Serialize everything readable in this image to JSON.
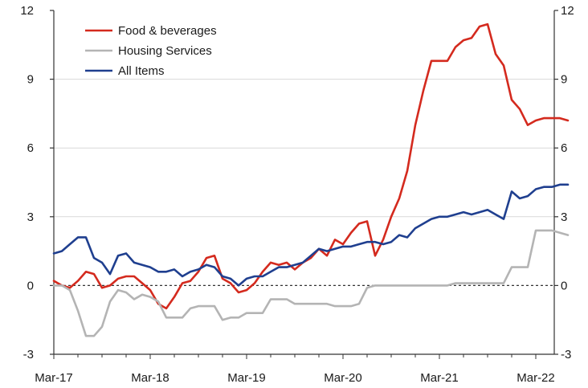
{
  "chart_data": {
    "type": "line",
    "title": "",
    "xlabel": "",
    "ylabel": "",
    "x_ticks": [
      "Mar-17",
      "Mar-18",
      "Mar-19",
      "Mar-20",
      "Mar-21",
      "Mar-22"
    ],
    "x_range": [
      "2017-03",
      "2022-03"
    ],
    "ylim": [
      -3,
      12
    ],
    "y_ticks": [
      -3,
      0,
      3,
      6,
      9,
      12
    ],
    "right_axis_mirrors_left": true,
    "grid": "horizontal",
    "legend_position": "top-left",
    "series": [
      {
        "name": "Food & beverages",
        "color": "#d42a1e",
        "points": [
          [
            "2017-03",
            0.2
          ],
          [
            "2017-04",
            0.0
          ],
          [
            "2017-05",
            -0.1
          ],
          [
            "2017-06",
            0.2
          ],
          [
            "2017-07",
            0.6
          ],
          [
            "2017-08",
            0.5
          ],
          [
            "2017-09",
            -0.1
          ],
          [
            "2017-10",
            0.0
          ],
          [
            "2017-11",
            0.3
          ],
          [
            "2017-12",
            0.4
          ],
          [
            "2018-01",
            0.4
          ],
          [
            "2018-02",
            0.1
          ],
          [
            "2018-03",
            -0.2
          ],
          [
            "2018-04",
            -0.8
          ],
          [
            "2018-05",
            -1.0
          ],
          [
            "2018-06",
            -0.5
          ],
          [
            "2018-07",
            0.1
          ],
          [
            "2018-08",
            0.2
          ],
          [
            "2018-09",
            0.6
          ],
          [
            "2018-10",
            1.2
          ],
          [
            "2018-11",
            1.3
          ],
          [
            "2018-12",
            0.3
          ],
          [
            "2019-01",
            0.1
          ],
          [
            "2019-02",
            -0.3
          ],
          [
            "2019-03",
            -0.2
          ],
          [
            "2019-04",
            0.1
          ],
          [
            "2019-05",
            0.6
          ],
          [
            "2019-06",
            1.0
          ],
          [
            "2019-07",
            0.9
          ],
          [
            "2019-08",
            1.0
          ],
          [
            "2019-09",
            0.7
          ],
          [
            "2019-10",
            1.0
          ],
          [
            "2019-11",
            1.2
          ],
          [
            "2019-12",
            1.6
          ],
          [
            "2020-01",
            1.3
          ],
          [
            "2020-02",
            2.0
          ],
          [
            "2020-03",
            1.8
          ],
          [
            "2020-04",
            2.3
          ],
          [
            "2020-05",
            2.7
          ],
          [
            "2020-06",
            2.8
          ],
          [
            "2020-07",
            1.3
          ],
          [
            "2020-08",
            2.0
          ],
          [
            "2020-09",
            3.0
          ],
          [
            "2020-10",
            3.8
          ],
          [
            "2020-11",
            5.0
          ],
          [
            "2020-12",
            7.0
          ],
          [
            "2021-01",
            8.5
          ],
          [
            "2021-02",
            9.8
          ],
          [
            "2021-03",
            9.8
          ],
          [
            "2021-04",
            9.8
          ],
          [
            "2021-05",
            10.4
          ],
          [
            "2021-06",
            10.7
          ],
          [
            "2021-07",
            10.8
          ],
          [
            "2021-08",
            11.3
          ],
          [
            "2021-09",
            11.4
          ],
          [
            "2021-10",
            10.1
          ],
          [
            "2021-11",
            9.6
          ],
          [
            "2021-12",
            8.1
          ],
          [
            "2022-01",
            7.7
          ],
          [
            "2022-02",
            7.0
          ],
          [
            "2022-03",
            7.2
          ],
          [
            "2022-04",
            7.3
          ],
          [
            "2022-05",
            7.3
          ],
          [
            "2022-06",
            7.3
          ],
          [
            "2022-07",
            7.2
          ]
        ]
      },
      {
        "name": "Housing Services",
        "color": "#b4b4b4",
        "points": [
          [
            "2017-03",
            0.0
          ],
          [
            "2017-04",
            0.0
          ],
          [
            "2017-05",
            -0.2
          ],
          [
            "2017-06",
            -1.1
          ],
          [
            "2017-07",
            -2.2
          ],
          [
            "2017-08",
            -2.2
          ],
          [
            "2017-09",
            -1.8
          ],
          [
            "2017-10",
            -0.7
          ],
          [
            "2017-11",
            -0.2
          ],
          [
            "2017-12",
            -0.3
          ],
          [
            "2018-01",
            -0.6
          ],
          [
            "2018-02",
            -0.4
          ],
          [
            "2018-03",
            -0.5
          ],
          [
            "2018-04",
            -0.7
          ],
          [
            "2018-05",
            -1.4
          ],
          [
            "2018-06",
            -1.4
          ],
          [
            "2018-07",
            -1.4
          ],
          [
            "2018-08",
            -1.0
          ],
          [
            "2018-09",
            -0.9
          ],
          [
            "2018-10",
            -0.9
          ],
          [
            "2018-11",
            -0.9
          ],
          [
            "2018-12",
            -1.5
          ],
          [
            "2019-01",
            -1.4
          ],
          [
            "2019-02",
            -1.4
          ],
          [
            "2019-03",
            -1.2
          ],
          [
            "2019-04",
            -1.2
          ],
          [
            "2019-05",
            -1.2
          ],
          [
            "2019-06",
            -0.6
          ],
          [
            "2019-07",
            -0.6
          ],
          [
            "2019-08",
            -0.6
          ],
          [
            "2019-09",
            -0.8
          ],
          [
            "2019-10",
            -0.8
          ],
          [
            "2019-11",
            -0.8
          ],
          [
            "2019-12",
            -0.8
          ],
          [
            "2020-01",
            -0.8
          ],
          [
            "2020-02",
            -0.9
          ],
          [
            "2020-03",
            -0.9
          ],
          [
            "2020-04",
            -0.9
          ],
          [
            "2020-05",
            -0.8
          ],
          [
            "2020-06",
            -0.1
          ],
          [
            "2020-07",
            0.0
          ],
          [
            "2020-08",
            0.0
          ],
          [
            "2020-09",
            0.0
          ],
          [
            "2020-10",
            0.0
          ],
          [
            "2020-11",
            0.0
          ],
          [
            "2020-12",
            0.0
          ],
          [
            "2021-01",
            0.0
          ],
          [
            "2021-02",
            0.0
          ],
          [
            "2021-03",
            0.0
          ],
          [
            "2021-04",
            0.0
          ],
          [
            "2021-05",
            0.1
          ],
          [
            "2021-06",
            0.1
          ],
          [
            "2021-07",
            0.1
          ],
          [
            "2021-08",
            0.1
          ],
          [
            "2021-09",
            0.1
          ],
          [
            "2021-10",
            0.1
          ],
          [
            "2021-11",
            0.1
          ],
          [
            "2021-12",
            0.8
          ],
          [
            "2022-01",
            0.8
          ],
          [
            "2022-02",
            0.8
          ],
          [
            "2022-03",
            2.4
          ],
          [
            "2022-04",
            2.4
          ],
          [
            "2022-05",
            2.4
          ],
          [
            "2022-06",
            2.3
          ],
          [
            "2022-07",
            2.2
          ]
        ]
      },
      {
        "name": "All Items",
        "color": "#1f3f8f",
        "points": [
          [
            "2017-03",
            1.4
          ],
          [
            "2017-04",
            1.5
          ],
          [
            "2017-05",
            1.8
          ],
          [
            "2017-06",
            2.1
          ],
          [
            "2017-07",
            2.1
          ],
          [
            "2017-08",
            1.2
          ],
          [
            "2017-09",
            1.0
          ],
          [
            "2017-10",
            0.5
          ],
          [
            "2017-11",
            1.3
          ],
          [
            "2017-12",
            1.4
          ],
          [
            "2018-01",
            1.0
          ],
          [
            "2018-02",
            0.9
          ],
          [
            "2018-03",
            0.8
          ],
          [
            "2018-04",
            0.6
          ],
          [
            "2018-05",
            0.6
          ],
          [
            "2018-06",
            0.7
          ],
          [
            "2018-07",
            0.4
          ],
          [
            "2018-08",
            0.6
          ],
          [
            "2018-09",
            0.7
          ],
          [
            "2018-10",
            0.9
          ],
          [
            "2018-11",
            0.8
          ],
          [
            "2018-12",
            0.4
          ],
          [
            "2019-01",
            0.3
          ],
          [
            "2019-02",
            0.0
          ],
          [
            "2019-03",
            0.3
          ],
          [
            "2019-04",
            0.4
          ],
          [
            "2019-05",
            0.4
          ],
          [
            "2019-06",
            0.6
          ],
          [
            "2019-07",
            0.8
          ],
          [
            "2019-08",
            0.8
          ],
          [
            "2019-09",
            0.9
          ],
          [
            "2019-10",
            1.0
          ],
          [
            "2019-11",
            1.3
          ],
          [
            "2019-12",
            1.6
          ],
          [
            "2020-01",
            1.5
          ],
          [
            "2020-02",
            1.6
          ],
          [
            "2020-03",
            1.7
          ],
          [
            "2020-04",
            1.7
          ],
          [
            "2020-05",
            1.8
          ],
          [
            "2020-06",
            1.9
          ],
          [
            "2020-07",
            1.9
          ],
          [
            "2020-08",
            1.8
          ],
          [
            "2020-09",
            1.9
          ],
          [
            "2020-10",
            2.2
          ],
          [
            "2020-11",
            2.1
          ],
          [
            "2020-12",
            2.5
          ],
          [
            "2021-01",
            2.7
          ],
          [
            "2021-02",
            2.9
          ],
          [
            "2021-03",
            3.0
          ],
          [
            "2021-04",
            3.0
          ],
          [
            "2021-05",
            3.1
          ],
          [
            "2021-06",
            3.2
          ],
          [
            "2021-07",
            3.1
          ],
          [
            "2021-08",
            3.2
          ],
          [
            "2021-09",
            3.3
          ],
          [
            "2021-10",
            3.1
          ],
          [
            "2021-11",
            2.9
          ],
          [
            "2021-12",
            4.1
          ],
          [
            "2022-01",
            3.8
          ],
          [
            "2022-02",
            3.9
          ],
          [
            "2022-03",
            4.2
          ],
          [
            "2022-04",
            4.3
          ],
          [
            "2022-05",
            4.3
          ],
          [
            "2022-06",
            4.4
          ],
          [
            "2022-07",
            4.4
          ]
        ]
      }
    ]
  }
}
